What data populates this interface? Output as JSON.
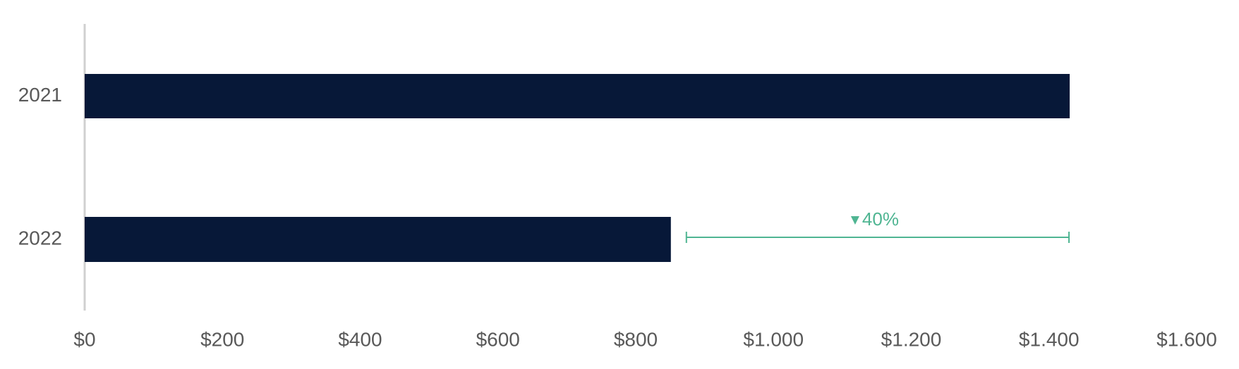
{
  "chart_data": {
    "type": "bar",
    "orientation": "horizontal",
    "categories": [
      "2021",
      "2022"
    ],
    "values": [
      1430,
      851
    ],
    "color": "#071838",
    "xlim": [
      0,
      1600
    ],
    "xticks": [
      {
        "value": 0,
        "label": "$0"
      },
      {
        "value": 200,
        "label": "$200"
      },
      {
        "value": 400,
        "label": "$400"
      },
      {
        "value": 600,
        "label": "$600"
      },
      {
        "value": 800,
        "label": "$800"
      },
      {
        "value": 1000,
        "label": "$1.000"
      },
      {
        "value": 1200,
        "label": "$1.200"
      },
      {
        "value": 1400,
        "label": "$1.400"
      },
      {
        "value": 1600,
        "label": "$1.600"
      }
    ],
    "annotation": {
      "text": "40%",
      "color": "#4fb592"
    }
  }
}
